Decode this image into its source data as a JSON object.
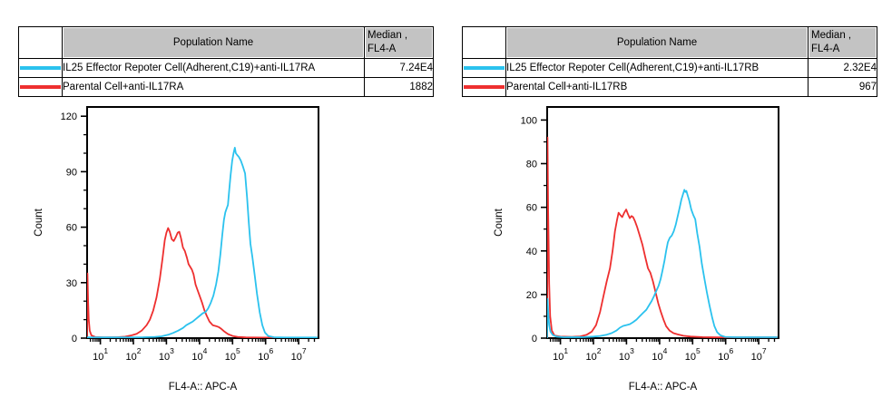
{
  "colors": {
    "cyan": "#2bc2ee",
    "red": "#ee2f2f",
    "header_gray": "#c3c3c3",
    "axis": "#000000"
  },
  "panels": [
    {
      "id": "anti-IL17RA",
      "table": {
        "header": {
          "population": "Population Name",
          "median_line1": "Median ,",
          "median_line2": "FL4-A"
        },
        "rows": [
          {
            "color": "#2bc2ee",
            "name": "IL25 Effector Repoter Cell(Adherent,C19)+anti-IL17RA",
            "median": "7.24E4"
          },
          {
            "color": "#ee2f2f",
            "name": "Parental Cell+anti-IL17RA",
            "median": "1882"
          }
        ]
      },
      "chart_data": {
        "type": "line",
        "title": "",
        "xlabel": "FL4-A:: APC-A",
        "ylabel": "Count",
        "x_scale": "log10",
        "xlim_log": [
          0.6,
          7.6
        ],
        "xticks_decades": [
          1,
          2,
          3,
          4,
          5,
          6,
          7
        ],
        "ylim": [
          0,
          125
        ],
        "yticks": [
          0,
          30,
          60,
          90,
          120
        ],
        "ytick_minor": 10,
        "grid": false,
        "legend_position": "table-above",
        "series": [
          {
            "name": "Parental Cell+anti-IL17RA",
            "color": "#ee2f2f",
            "median": 1882,
            "points": [
              [
                0.6,
                0
              ],
              [
                0.61,
                35
              ],
              [
                0.63,
                20
              ],
              [
                0.65,
                10
              ],
              [
                0.68,
                4
              ],
              [
                0.73,
                1.5
              ],
              [
                0.85,
                0.6
              ],
              [
                1.1,
                0.4
              ],
              [
                1.5,
                0.5
              ],
              [
                1.75,
                0.8
              ],
              [
                1.95,
                1.5
              ],
              [
                2.1,
                2.3
              ],
              [
                2.25,
                4
              ],
              [
                2.4,
                7
              ],
              [
                2.5,
                10
              ],
              [
                2.6,
                15
              ],
              [
                2.7,
                22
              ],
              [
                2.8,
                32
              ],
              [
                2.88,
                43
              ],
              [
                2.95,
                53
              ],
              [
                3.0,
                57
              ],
              [
                3.05,
                59.5
              ],
              [
                3.1,
                57.5
              ],
              [
                3.16,
                53.5
              ],
              [
                3.22,
                52.5
              ],
              [
                3.28,
                54.5
              ],
              [
                3.34,
                57
              ],
              [
                3.39,
                57.5
              ],
              [
                3.44,
                54
              ],
              [
                3.5,
                49
              ],
              [
                3.56,
                47
              ],
              [
                3.62,
                43.5
              ],
              [
                3.67,
                40
              ],
              [
                3.72,
                38.5
              ],
              [
                3.77,
                37
              ],
              [
                3.82,
                34.5
              ],
              [
                3.88,
                29
              ],
              [
                3.94,
                26
              ],
              [
                4.0,
                23
              ],
              [
                4.08,
                19
              ],
              [
                4.15,
                15
              ],
              [
                4.22,
                12
              ],
              [
                4.3,
                9
              ],
              [
                4.4,
                7
              ],
              [
                4.5,
                6.5
              ],
              [
                4.58,
                6
              ],
              [
                4.66,
                5
              ],
              [
                4.76,
                3.5
              ],
              [
                4.86,
                2.2
              ],
              [
                5.0,
                1.2
              ],
              [
                5.15,
                0.7
              ],
              [
                5.4,
                0.4
              ],
              [
                5.9,
                0.3
              ],
              [
                7.55,
                0.3
              ]
            ]
          },
          {
            "name": "IL25 Effector Repoter Cell(Adherent,C19)+anti-IL17RA",
            "color": "#2bc2ee",
            "median": 72400,
            "points": [
              [
                0.6,
                0.4
              ],
              [
                1.6,
                0.4
              ],
              [
                2.3,
                0.5
              ],
              [
                2.65,
                0.7
              ],
              [
                2.85,
                1
              ],
              [
                3.05,
                1.8
              ],
              [
                3.2,
                2.8
              ],
              [
                3.35,
                4
              ],
              [
                3.5,
                5.5
              ],
              [
                3.6,
                7
              ],
              [
                3.7,
                8
              ],
              [
                3.8,
                9
              ],
              [
                3.9,
                10.5
              ],
              [
                4.0,
                12
              ],
              [
                4.1,
                13.5
              ],
              [
                4.18,
                14
              ],
              [
                4.26,
                16
              ],
              [
                4.34,
                19
              ],
              [
                4.42,
                23
              ],
              [
                4.5,
                29
              ],
              [
                4.57,
                36
              ],
              [
                4.63,
                45
              ],
              [
                4.69,
                56
              ],
              [
                4.74,
                64
              ],
              [
                4.78,
                68
              ],
              [
                4.82,
                70
              ],
              [
                4.86,
                72
              ],
              [
                4.9,
                80
              ],
              [
                4.94,
                88
              ],
              [
                4.99,
                96
              ],
              [
                5.03,
                100
              ],
              [
                5.07,
                103
              ],
              [
                5.1,
                100
              ],
              [
                5.14,
                99
              ],
              [
                5.19,
                98
              ],
              [
                5.25,
                96
              ],
              [
                5.31,
                93
              ],
              [
                5.38,
                89
              ],
              [
                5.44,
                76
              ],
              [
                5.49,
                63
              ],
              [
                5.54,
                51
              ],
              [
                5.6,
                44
              ],
              [
                5.67,
                34
              ],
              [
                5.74,
                24
              ],
              [
                5.82,
                14
              ],
              [
                5.9,
                7
              ],
              [
                5.98,
                3
              ],
              [
                6.08,
                1.2
              ],
              [
                6.25,
                0.5
              ],
              [
                6.6,
                0.35
              ],
              [
                7.55,
                0.35
              ]
            ]
          }
        ]
      }
    },
    {
      "id": "anti-IL17RB",
      "table": {
        "header": {
          "population": "Population Name",
          "median_line1": "Median ,",
          "median_line2": "FL4-A"
        },
        "rows": [
          {
            "color": "#2bc2ee",
            "name": "IL25 Effector Repoter Cell(Adherent,C19)+anti-IL17RB",
            "median": "2.32E4"
          },
          {
            "color": "#ee2f2f",
            "name": "Parental Cell+anti-IL17RB",
            "median": "967"
          }
        ]
      },
      "chart_data": {
        "type": "line",
        "title": "",
        "xlabel": "FL4-A:: APC-A",
        "ylabel": "Count",
        "x_scale": "log10",
        "xlim_log": [
          0.6,
          7.6
        ],
        "xticks_decades": [
          1,
          2,
          3,
          4,
          5,
          6,
          7
        ],
        "ylim": [
          0,
          106
        ],
        "yticks": [
          0,
          20,
          40,
          60,
          80,
          100
        ],
        "ytick_minor": 10,
        "grid": false,
        "legend_position": "table-above",
        "series": [
          {
            "name": "Parental Cell+anti-IL17RB",
            "color": "#ee2f2f",
            "median": 967,
            "points": [
              [
                0.6,
                0
              ],
              [
                0.61,
                92
              ],
              [
                0.63,
                58
              ],
              [
                0.645,
                44
              ],
              [
                0.66,
                25
              ],
              [
                0.69,
                10
              ],
              [
                0.74,
                3.5
              ],
              [
                0.82,
                1.2
              ],
              [
                1.0,
                0.7
              ],
              [
                1.35,
                0.6
              ],
              [
                1.6,
                0.8
              ],
              [
                1.8,
                1.6
              ],
              [
                1.95,
                3
              ],
              [
                2.08,
                6
              ],
              [
                2.2,
                12
              ],
              [
                2.3,
                19
              ],
              [
                2.4,
                26
              ],
              [
                2.5,
                32
              ],
              [
                2.58,
                40
              ],
              [
                2.65,
                49
              ],
              [
                2.71,
                54
              ],
              [
                2.76,
                57.5
              ],
              [
                2.81,
                56.5
              ],
              [
                2.87,
                55.5
              ],
              [
                2.93,
                57.5
              ],
              [
                2.99,
                59
              ],
              [
                3.04,
                57
              ],
              [
                3.1,
                55
              ],
              [
                3.15,
                56
              ],
              [
                3.2,
                55.5
              ],
              [
                3.26,
                53.5
              ],
              [
                3.32,
                51
              ],
              [
                3.4,
                47
              ],
              [
                3.48,
                43
              ],
              [
                3.57,
                37
              ],
              [
                3.65,
                32
              ],
              [
                3.72,
                30
              ],
              [
                3.8,
                26
              ],
              [
                3.88,
                21
              ],
              [
                3.96,
                16
              ],
              [
                4.04,
                12
              ],
              [
                4.12,
                8.5
              ],
              [
                4.2,
                5.5
              ],
              [
                4.3,
                3.5
              ],
              [
                4.42,
                2.3
              ],
              [
                4.55,
                1.7
              ],
              [
                4.72,
                1.1
              ],
              [
                4.95,
                0.7
              ],
              [
                5.3,
                0.45
              ],
              [
                5.8,
                0.35
              ],
              [
                7.55,
                0.35
              ]
            ]
          },
          {
            "name": "IL25 Effector Repoter Cell(Adherent,C19)+anti-IL17RB",
            "color": "#2bc2ee",
            "median": 23200,
            "points": [
              [
                0.6,
                0.3
              ],
              [
                0.61,
                18
              ],
              [
                0.63,
                12
              ],
              [
                0.66,
                6
              ],
              [
                0.7,
                3
              ],
              [
                0.77,
                1.4
              ],
              [
                0.88,
                0.7
              ],
              [
                1.1,
                0.4
              ],
              [
                1.7,
                0.45
              ],
              [
                2.0,
                0.7
              ],
              [
                2.2,
                1
              ],
              [
                2.4,
                1.6
              ],
              [
                2.55,
                2.3
              ],
              [
                2.7,
                3.5
              ],
              [
                2.8,
                4.8
              ],
              [
                2.9,
                5.6
              ],
              [
                3.0,
                6
              ],
              [
                3.1,
                6.4
              ],
              [
                3.2,
                7.3
              ],
              [
                3.3,
                8.5
              ],
              [
                3.4,
                10
              ],
              [
                3.5,
                11.5
              ],
              [
                3.6,
                13
              ],
              [
                3.68,
                15
              ],
              [
                3.76,
                17
              ],
              [
                3.84,
                19.5
              ],
              [
                3.91,
                22
              ],
              [
                3.97,
                24
              ],
              [
                4.03,
                27
              ],
              [
                4.09,
                31
              ],
              [
                4.15,
                35.5
              ],
              [
                4.2,
                40
              ],
              [
                4.25,
                44
              ],
              [
                4.31,
                46
              ],
              [
                4.37,
                47
              ],
              [
                4.43,
                49
              ],
              [
                4.49,
                52
              ],
              [
                4.55,
                56
              ],
              [
                4.61,
                60
              ],
              [
                4.66,
                63.5
              ],
              [
                4.71,
                66
              ],
              [
                4.75,
                68
              ],
              [
                4.78,
                67
              ],
              [
                4.81,
                67.5
              ],
              [
                4.85,
                65.5
              ],
              [
                4.9,
                63
              ],
              [
                4.96,
                59
              ],
              [
                5.02,
                56.5
              ],
              [
                5.08,
                54.5
              ],
              [
                5.14,
                48
              ],
              [
                5.21,
                42
              ],
              [
                5.28,
                34
              ],
              [
                5.36,
                27
              ],
              [
                5.43,
                21
              ],
              [
                5.51,
                15
              ],
              [
                5.59,
                9.5
              ],
              [
                5.66,
                5.5
              ],
              [
                5.74,
                2.8
              ],
              [
                5.84,
                1.3
              ],
              [
                5.98,
                0.6
              ],
              [
                6.3,
                0.4
              ],
              [
                7.55,
                0.4
              ]
            ]
          }
        ]
      }
    }
  ]
}
